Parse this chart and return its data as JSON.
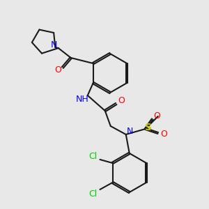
{
  "background_color": "#e8e8e8",
  "bond_color": "#1a1a1a",
  "atom_colors": {
    "N": "#0000ff",
    "O": "#ff0000",
    "S": "#cccc00",
    "Cl": "#00cc00",
    "H": "#008080",
    "C": "#1a1a1a"
  },
  "figsize": [
    3.0,
    3.0
  ],
  "dpi": 100
}
